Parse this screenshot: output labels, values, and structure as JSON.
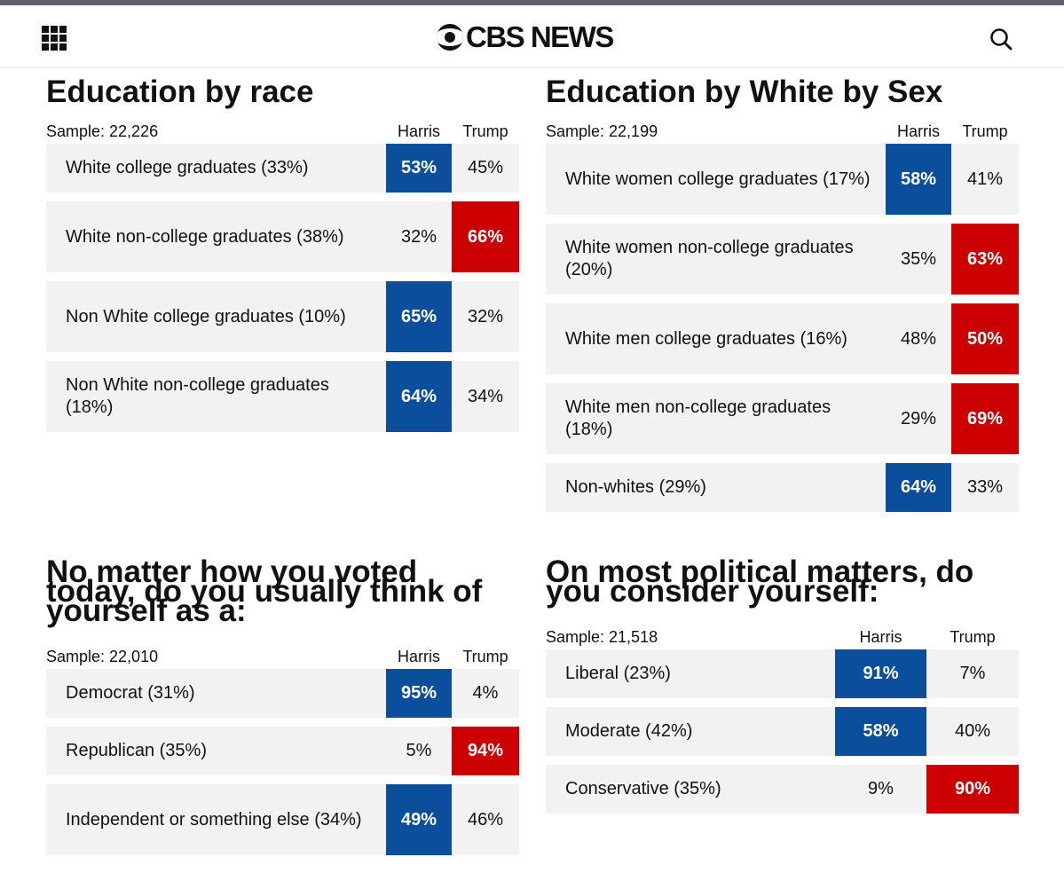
{
  "header": {
    "logo_text": "CBS NEWS",
    "menu_icon": "grid-menu-icon",
    "search_icon": "search-icon"
  },
  "colors": {
    "harris": "#0b4f9c",
    "trump": "#cc0000",
    "row_bg": "#f2f2f2"
  },
  "panels": [
    {
      "title": "Education by race",
      "sample": "Sample: 22,226",
      "col_harris": "Harris",
      "col_trump": "Trump",
      "rows": [
        {
          "label": "White college graduates (33%)",
          "harris": "53%",
          "trump": "45%",
          "winner": "harris"
        },
        {
          "label": "White non-college graduates (38%)",
          "harris": "32%",
          "trump": "66%",
          "winner": "trump"
        },
        {
          "label": "Non White college graduates (10%)",
          "harris": "65%",
          "trump": "32%",
          "winner": "harris"
        },
        {
          "label": "Non White non-college graduates (18%)",
          "harris": "64%",
          "trump": "34%",
          "winner": "harris"
        }
      ]
    },
    {
      "title": "Education by White by Sex",
      "sample": "Sample: 22,199",
      "col_harris": "Harris",
      "col_trump": "Trump",
      "rows": [
        {
          "label": "White women college graduates (17%)",
          "harris": "58%",
          "trump": "41%",
          "winner": "harris"
        },
        {
          "label": "White women non-college graduates (20%)",
          "harris": "35%",
          "trump": "63%",
          "winner": "trump"
        },
        {
          "label": "White men college graduates (16%)",
          "harris": "48%",
          "trump": "50%",
          "winner": "trump"
        },
        {
          "label": "White men non-college graduates (18%)",
          "harris": "29%",
          "trump": "69%",
          "winner": "trump"
        },
        {
          "label": "Non-whites (29%)",
          "harris": "64%",
          "trump": "33%",
          "winner": "harris"
        }
      ]
    },
    {
      "title_lines": [
        "No matter how you voted",
        "today, do you usually think of",
        "yourself as a:"
      ],
      "sample": "Sample: 22,010",
      "col_harris": "Harris",
      "col_trump": "Trump",
      "rows": [
        {
          "label": "Democrat (31%)",
          "harris": "95%",
          "trump": "4%",
          "winner": "harris"
        },
        {
          "label": "Republican (35%)",
          "harris": "5%",
          "trump": "94%",
          "winner": "trump"
        },
        {
          "label": "Independent or something else (34%)",
          "harris": "49%",
          "trump": "46%",
          "winner": "harris"
        }
      ]
    },
    {
      "title_lines": [
        "On most political matters, do",
        "you consider yourself:"
      ],
      "sample": "Sample: 21,518",
      "col_harris": "Harris",
      "col_trump": "Trump",
      "rows": [
        {
          "label": "Liberal (23%)",
          "harris": "91%",
          "trump": "7%",
          "winner": "harris"
        },
        {
          "label": "Moderate (42%)",
          "harris": "58%",
          "trump": "40%",
          "winner": "harris"
        },
        {
          "label": "Conservative (35%)",
          "harris": "9%",
          "trump": "90%",
          "winner": "trump"
        }
      ]
    }
  ]
}
